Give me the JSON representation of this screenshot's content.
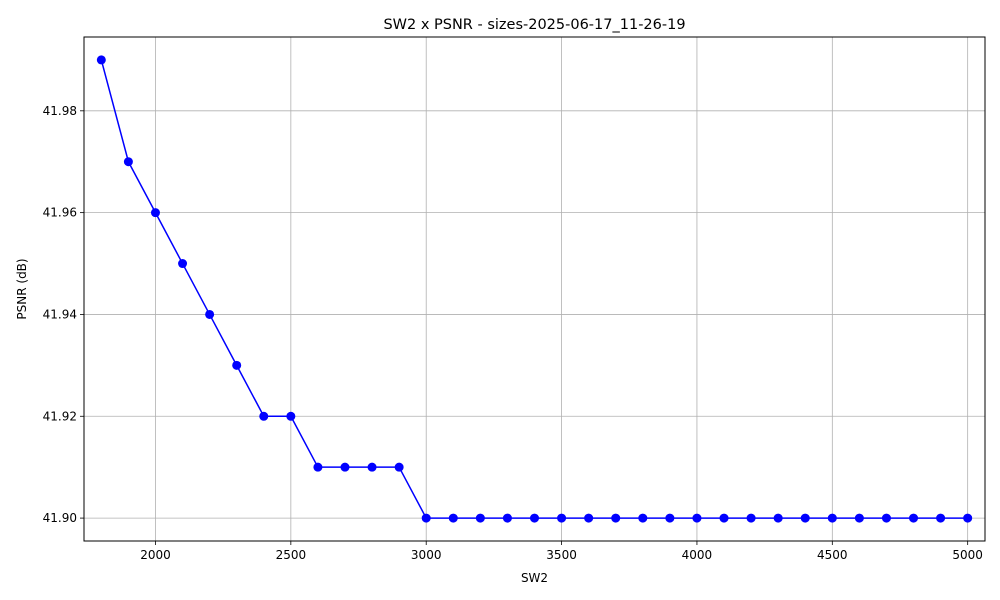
{
  "chart_data": {
    "type": "line",
    "title": "SW2 x PSNR - sizes-2025-06-17_11-26-19",
    "xlabel": "SW2",
    "ylabel": "PSNR (dB)",
    "xlim": [
      1736,
      5064
    ],
    "ylim": [
      41.8955,
      41.9945
    ],
    "xticks": [
      2000,
      2500,
      3000,
      3500,
      4000,
      4500,
      5000
    ],
    "yticks": [
      41.9,
      41.92,
      41.94,
      41.96,
      41.98
    ],
    "xtick_labels": [
      "2000",
      "2500",
      "3000",
      "3500",
      "4000",
      "4500",
      "5000"
    ],
    "ytick_labels": [
      "41.90",
      "41.92",
      "41.94",
      "41.96",
      "41.98"
    ],
    "grid": true,
    "colors": {
      "series": "#0000ff",
      "grid": "#b0b0b0"
    },
    "series": [
      {
        "x": [
          1800,
          1900,
          2000,
          2100,
          2200,
          2300,
          2400,
          2500,
          2600,
          2700,
          2800,
          2900,
          3000,
          3100,
          3200,
          3300,
          3400,
          3500,
          3600,
          3700,
          3800,
          3900,
          4000,
          4100,
          4200,
          4300,
          4400,
          4500,
          4600,
          4700,
          4800,
          4900,
          5000
        ],
        "y": [
          41.99,
          41.97,
          41.96,
          41.95,
          41.94,
          41.93,
          41.92,
          41.92,
          41.91,
          41.91,
          41.91,
          41.91,
          41.9,
          41.9,
          41.9,
          41.9,
          41.9,
          41.9,
          41.9,
          41.9,
          41.9,
          41.9,
          41.9,
          41.9,
          41.9,
          41.9,
          41.9,
          41.9,
          41.9,
          41.9,
          41.9,
          41.9,
          41.9
        ]
      }
    ]
  }
}
